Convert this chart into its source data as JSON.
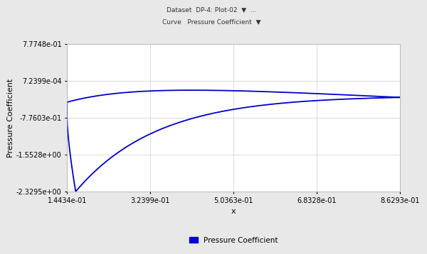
{
  "title": "",
  "xlabel": "x",
  "ylabel": "Pressure Coefficient",
  "xlim": [
    0.14434,
    0.86293
  ],
  "ylim": [
    -2.3295,
    0.77748
  ],
  "xticks": [
    0.14434,
    0.32399,
    0.50363,
    0.68328,
    0.86293
  ],
  "xtick_labels": [
    "1.4434e-01",
    "3.2399e-01",
    "5.0363e-01",
    "6.8328e-01",
    "8.6293e-01"
  ],
  "yticks": [
    -2.3295,
    -1.5528,
    -0.77603,
    0.00072399,
    0.77748
  ],
  "ytick_labels": [
    "-2.3295e+00",
    "-1.5528e+00",
    "-7.7603e-01",
    "7.2399e-04",
    "7.7748e-01"
  ],
  "line_color": "#0000cc",
  "line_width": 1.3,
  "legend_label": "Pressure Coefficient",
  "bg_color": "#e8e8e8",
  "plot_bg_color": "#ffffff",
  "grid_color": "#cccccc",
  "header_bg": "#d4d4d4"
}
